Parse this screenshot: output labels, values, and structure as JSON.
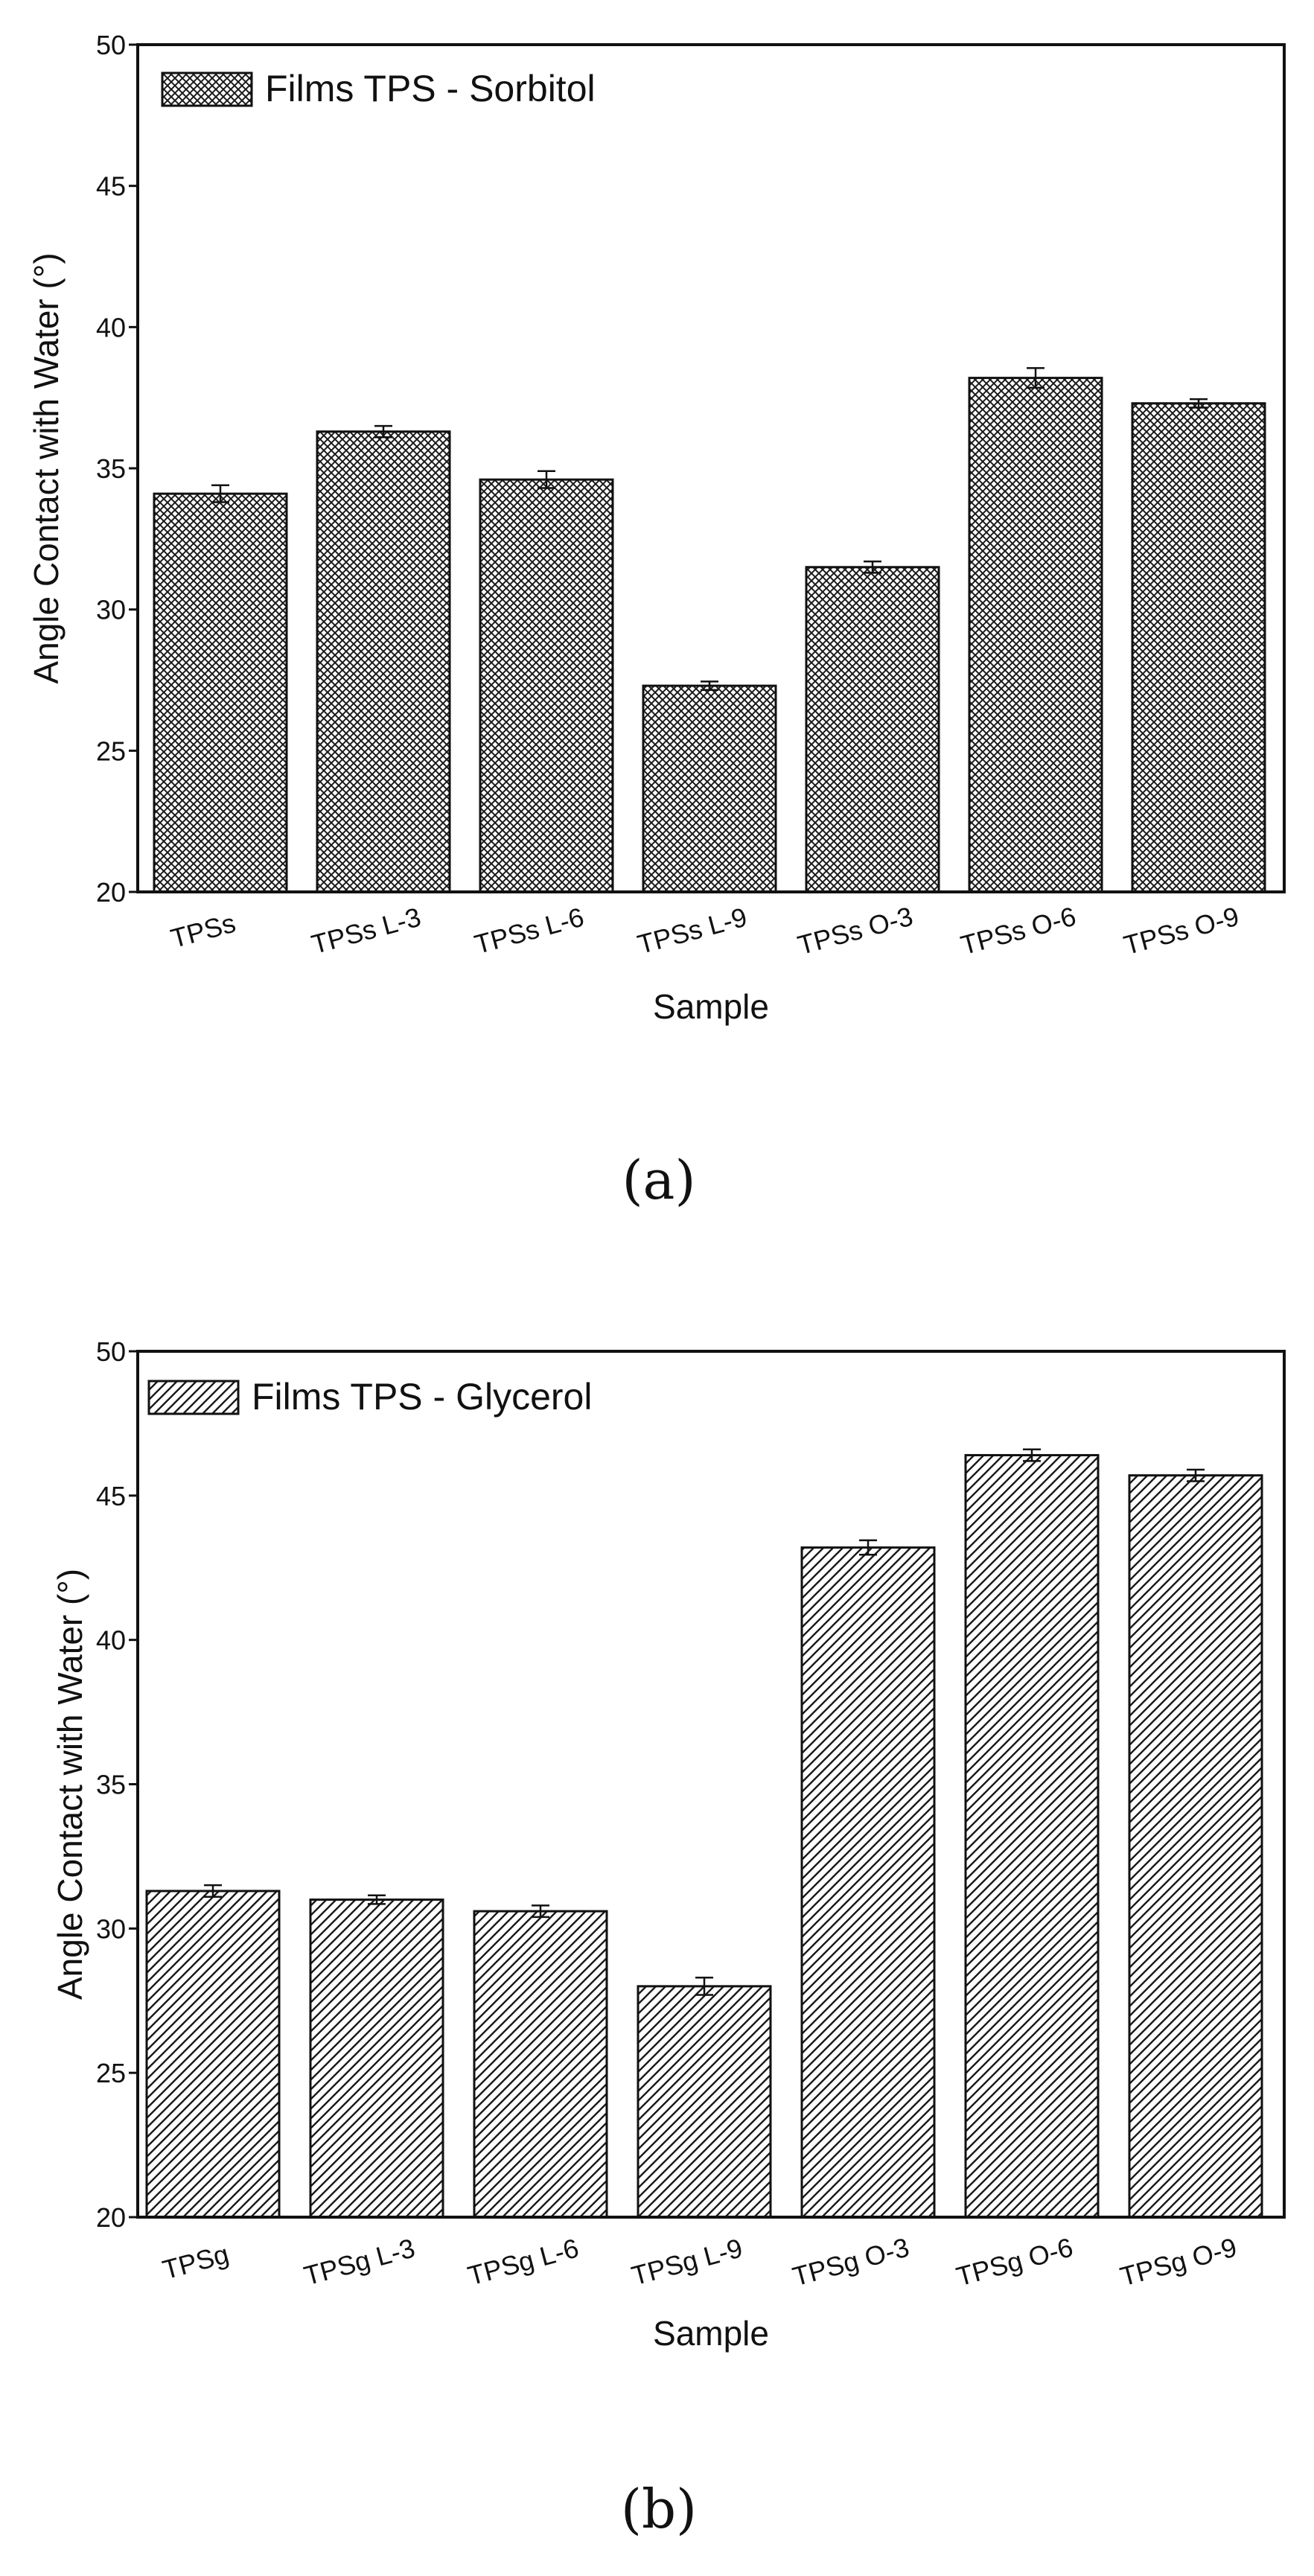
{
  "chart_data": [
    {
      "type": "bar",
      "caption": "(a)",
      "legend": "Films TPS - Sorbitol",
      "legend_position": "top-left",
      "pattern": "crosshatch",
      "xlabel": "Sample",
      "ylabel": "Angle Contact with Water (°)",
      "ylim": [
        20,
        50
      ],
      "yticks": [
        20,
        25,
        30,
        35,
        40,
        45,
        50
      ],
      "grid": false,
      "categories": [
        "TPSs",
        "TPSs L-3",
        "TPSs L-6",
        "TPSs L-9",
        "TPSs O-3",
        "TPSs O-6",
        "TPSs O-9"
      ],
      "values": [
        34.1,
        36.3,
        34.6,
        27.3,
        31.5,
        38.2,
        37.3
      ],
      "errors": [
        0.3,
        0.2,
        0.3,
        0.15,
        0.2,
        0.35,
        0.15
      ]
    },
    {
      "type": "bar",
      "caption": "(b)",
      "legend": "Films TPS - Glycerol",
      "legend_position": "top-left",
      "pattern": "diagonal-hatch",
      "xlabel": "Sample",
      "ylabel": "Angle Contact with Water (°)",
      "ylim": [
        20,
        50
      ],
      "yticks": [
        20,
        25,
        30,
        35,
        40,
        45,
        50
      ],
      "grid": false,
      "categories": [
        "TPSg",
        "TPSg L-3",
        "TPSg L-6",
        "TPSg L-9",
        "TPSg O-3",
        "TPSg O-6",
        "TPSg O-9"
      ],
      "values": [
        31.3,
        31.0,
        30.6,
        28.0,
        43.2,
        46.4,
        45.7
      ],
      "errors": [
        0.2,
        0.15,
        0.2,
        0.3,
        0.25,
        0.2,
        0.2
      ]
    }
  ]
}
